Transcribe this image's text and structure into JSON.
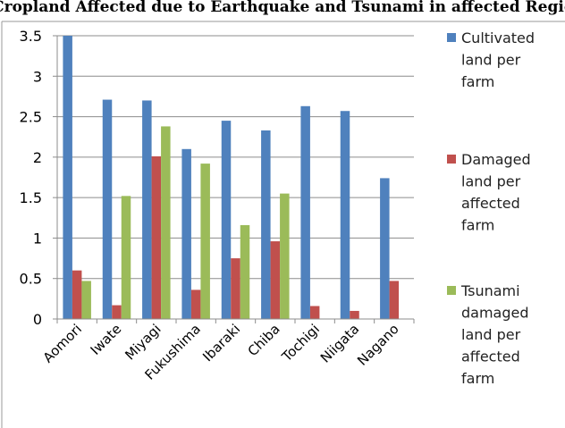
{
  "chart_data": {
    "type": "bar",
    "title": "age of Cropland Affected due to Earthquake and Tsunami in affected Regions (Ha",
    "xlabel": "",
    "ylabel": "",
    "ylim": [
      0,
      3.5
    ],
    "yticks": [
      "0",
      "0.5",
      "1",
      "1.5",
      "2",
      "2.5",
      "3",
      "3.5"
    ],
    "grid": true,
    "legend_position": "right",
    "categories": [
      "Aomori",
      "Iwate",
      "Miyagi",
      "Fukushima",
      "Ibaraki",
      "Chiba",
      "Tochigi",
      "Niigata",
      "Nagano"
    ],
    "series": [
      {
        "name": "Cultivated land per farm",
        "legend_lines": [
          "Cultivated",
          "land per",
          "farm"
        ],
        "color": "#4f81bd",
        "values": [
          3.5,
          2.71,
          2.7,
          2.1,
          2.45,
          2.33,
          2.63,
          2.57,
          1.74
        ]
      },
      {
        "name": "Damaged land per affected farm",
        "legend_lines": [
          "Damaged",
          "land per",
          "affected",
          "farm"
        ],
        "color": "#c0504d",
        "values": [
          0.6,
          0.17,
          2.01,
          0.36,
          0.75,
          0.96,
          0.16,
          0.1,
          0.47
        ]
      },
      {
        "name": "Tsunami damaged land per affected farm",
        "legend_lines": [
          "Tsunami",
          "damaged",
          "land per",
          "affected",
          "farm"
        ],
        "color": "#9bbb59",
        "values": [
          0.47,
          1.52,
          2.38,
          1.92,
          1.16,
          1.55,
          null,
          null,
          null
        ]
      }
    ]
  }
}
